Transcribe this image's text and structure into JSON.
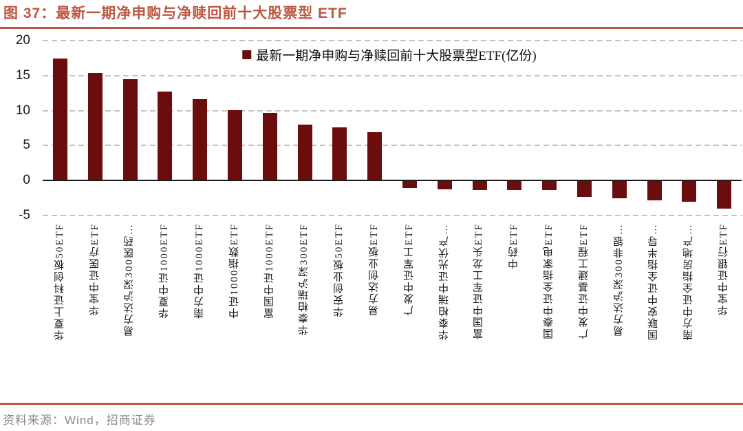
{
  "header": {
    "title": "图 37：最新一期净申购与净赎回前十大股票型 ETF"
  },
  "footer": {
    "source": "资料来源：Wind，招商证券"
  },
  "colors": {
    "accent_rule": "#bd5741",
    "title_text": "#bd5741",
    "bar": "#6b0c0d",
    "gridline": "#c3c3c3",
    "zero_axis": "#1a1a1a",
    "source_text": "#8a8a8a"
  },
  "chart_data": {
    "type": "bar",
    "title": "图 37：最新一期净申购与净赎回前十大股票型 ETF",
    "legend": "最新一期净申购与净赎回前十大股票型ETF(亿份)",
    "legend_position": "top-center",
    "categories": [
      "华夏上证科创板50ETF",
      "华宝中证医疗ETF",
      "易方达沪深300医药…",
      "华夏中证1000ETF",
      "南方中证1000ETF",
      "中证1000指数ETF",
      "富国中证1000ETF",
      "华泰柏瑞沪深300ETF",
      "华安创业板50ETF",
      "易方达创业板ETF",
      "广发中证军工ETF",
      "华泰柏瑞中证光伏产…",
      "富国中证军工龙头ETF",
      "中药ETF",
      "国泰中证全指家电ETF",
      "广发中证基建工程ETF",
      "易方达沪深300非银…",
      "国联安中证全指半导…",
      "南方中证全指房地产…",
      "华宝中证银行ETF"
    ],
    "values": [
      17.3,
      15.3,
      14.4,
      12.6,
      11.5,
      10.0,
      9.6,
      7.9,
      7.5,
      6.8,
      -1.0,
      -1.2,
      -1.3,
      -1.3,
      -1.3,
      -2.3,
      -2.5,
      -2.8,
      -3.0,
      -3.9
    ],
    "unit": "亿份",
    "xlabel": "",
    "ylabel": "",
    "ylim": [
      -5,
      20
    ],
    "yticks": [
      20,
      15,
      10,
      5,
      0,
      -5
    ],
    "grid": "horizontal-dashed",
    "bar_color": "#6b0c0d"
  }
}
